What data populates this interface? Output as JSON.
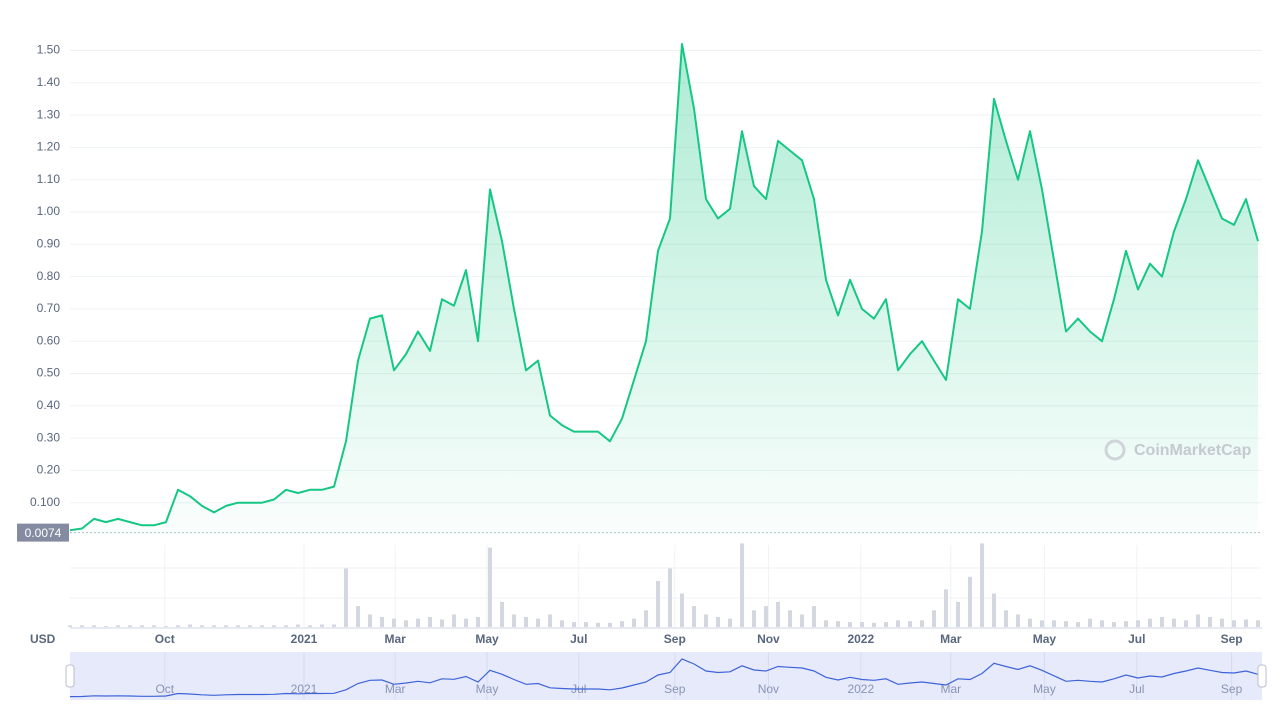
{
  "chart_data": {
    "type": "line",
    "currency": "USD",
    "watermark": "CoinMarketCap",
    "color": "#16c784",
    "grid": true,
    "values": [
      0.015,
      0.02,
      0.05,
      0.04,
      0.05,
      0.04,
      0.03,
      0.03,
      0.04,
      0.14,
      0.12,
      0.09,
      0.07,
      0.09,
      0.1,
      0.1,
      0.1,
      0.11,
      0.14,
      0.13,
      0.14,
      0.14,
      0.15,
      0.29,
      0.54,
      0.67,
      0.68,
      0.51,
      0.56,
      0.63,
      0.57,
      0.73,
      0.71,
      0.82,
      0.6,
      1.07,
      0.91,
      0.7,
      0.51,
      0.54,
      0.37,
      0.34,
      0.32,
      0.32,
      0.32,
      0.29,
      0.36,
      0.48,
      0.6,
      0.88,
      0.98,
      1.52,
      1.32,
      1.04,
      0.98,
      1.01,
      1.25,
      1.08,
      1.04,
      1.22,
      1.19,
      1.16,
      1.04,
      0.79,
      0.68,
      0.79,
      0.7,
      0.67,
      0.73,
      0.51,
      0.56,
      0.6,
      0.54,
      0.48,
      0.73,
      0.7,
      0.94,
      1.35,
      1.22,
      1.1,
      1.25,
      1.07,
      0.85,
      0.63,
      0.67,
      0.63,
      0.6,
      0.73,
      0.88,
      0.76,
      0.84,
      0.8,
      0.94,
      1.04,
      1.16,
      1.07,
      0.98,
      0.96,
      1.04,
      0.91
    ],
    "xlim": [
      0,
      99
    ],
    "ylim": [
      0,
      1.6
    ],
    "yticks": [
      {
        "value": 0.1,
        "label": "0.100"
      },
      {
        "value": 0.2,
        "label": "0.20"
      },
      {
        "value": 0.3,
        "label": "0.30"
      },
      {
        "value": 0.4,
        "label": "0.40"
      },
      {
        "value": 0.5,
        "label": "0.50"
      },
      {
        "value": 0.6,
        "label": "0.60"
      },
      {
        "value": 0.7,
        "label": "0.70"
      },
      {
        "value": 0.8,
        "label": "0.80"
      },
      {
        "value": 0.9,
        "label": "0.90"
      },
      {
        "value": 1.0,
        "label": "1.00"
      },
      {
        "value": 1.1,
        "label": "1.10"
      },
      {
        "value": 1.2,
        "label": "1.20"
      },
      {
        "value": 1.3,
        "label": "1.30"
      },
      {
        "value": 1.4,
        "label": "1.40"
      },
      {
        "value": 1.5,
        "label": "1.50"
      }
    ],
    "xticks": [
      {
        "value": 7.9,
        "label": "Oct"
      },
      {
        "value": 19.5,
        "label": "2021"
      },
      {
        "value": 27.1,
        "label": "Mar"
      },
      {
        "value": 34.75,
        "label": "May"
      },
      {
        "value": 42.4,
        "label": "Jul"
      },
      {
        "value": 50.4,
        "label": "Sep"
      },
      {
        "value": 58.2,
        "label": "Nov"
      },
      {
        "value": 65.9,
        "label": "2022"
      },
      {
        "value": 73.4,
        "label": "Mar"
      },
      {
        "value": 81.2,
        "label": "May"
      },
      {
        "value": 88.9,
        "label": "Jul"
      },
      {
        "value": 96.8,
        "label": "Sep"
      }
    ],
    "base_marker": {
      "value": 0.0074,
      "label": "0.0074"
    },
    "volume": {
      "type": "bar",
      "color": "#d3d7df",
      "ylim": [
        0,
        110
      ],
      "values": [
        2,
        2,
        2,
        1,
        2,
        2,
        2,
        2,
        1,
        2,
        3,
        2,
        2,
        2,
        2,
        2,
        2,
        2,
        2,
        3,
        2,
        3,
        3,
        70,
        25,
        15,
        12,
        10,
        8,
        10,
        12,
        9,
        15,
        10,
        12,
        95,
        30,
        15,
        12,
        10,
        15,
        8,
        6,
        6,
        5,
        5,
        7,
        10,
        20,
        55,
        70,
        40,
        25,
        15,
        12,
        10,
        100,
        20,
        25,
        30,
        20,
        15,
        25,
        8,
        7,
        6,
        6,
        5,
        6,
        8,
        7,
        8,
        20,
        45,
        30,
        60,
        100,
        40,
        20,
        15,
        10,
        8,
        8,
        7,
        6,
        10,
        8,
        6,
        7,
        8,
        10,
        12,
        10,
        8,
        15,
        12,
        10,
        8,
        9,
        8
      ]
    }
  }
}
